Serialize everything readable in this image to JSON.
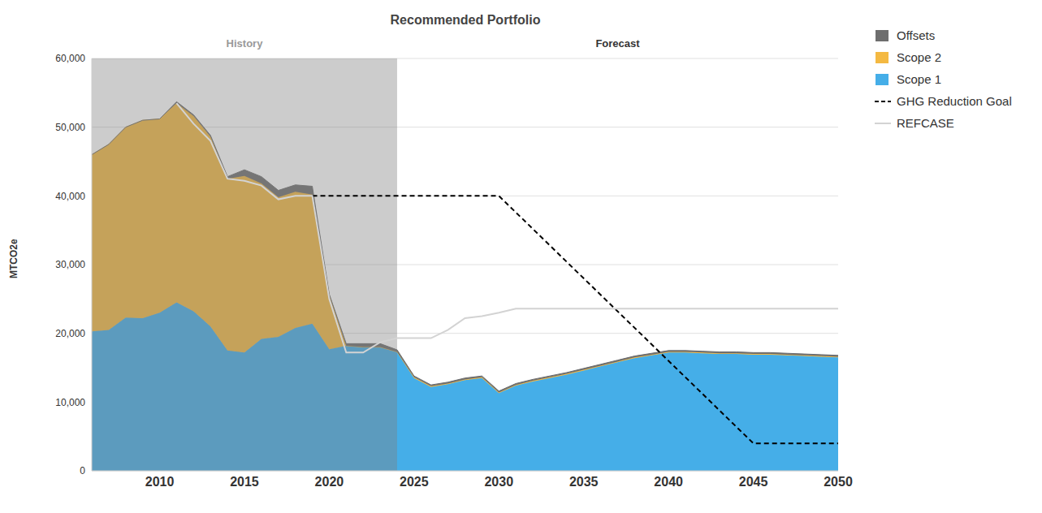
{
  "chart_data": {
    "type": "area",
    "title": "Recommended Portfolio",
    "y_label": "MTCO2e",
    "stacked": true,
    "grid": true,
    "legend": "right",
    "x": [
      2006,
      2007,
      2008,
      2009,
      2010,
      2011,
      2012,
      2013,
      2014,
      2015,
      2016,
      2017,
      2018,
      2019,
      2020,
      2021,
      2022,
      2023,
      2024,
      2025,
      2026,
      2027,
      2028,
      2029,
      2030,
      2031,
      2032,
      2033,
      2034,
      2035,
      2036,
      2037,
      2038,
      2039,
      2040,
      2041,
      2042,
      2043,
      2044,
      2045,
      2046,
      2047,
      2048,
      2049,
      2050
    ],
    "xlim": [
      2006,
      2050
    ],
    "xticks": [
      2010,
      2015,
      2020,
      2025,
      2030,
      2035,
      2040,
      2045,
      2050
    ],
    "ylim": [
      0,
      60000
    ],
    "yticks": [
      {
        "value": 0,
        "label": "0"
      },
      {
        "value": 10000,
        "label": "10,000"
      },
      {
        "value": 20000,
        "label": "20,000"
      },
      {
        "value": 30000,
        "label": "30,000"
      },
      {
        "value": 40000,
        "label": "40,000"
      },
      {
        "value": 50000,
        "label": "50,000"
      },
      {
        "value": 60000,
        "label": "60,000"
      }
    ],
    "regions": [
      {
        "label": "History",
        "x": [
          2006,
          2024
        ]
      },
      {
        "label": "Forecast",
        "x": [
          2024,
          2050
        ]
      }
    ],
    "series": [
      {
        "name": "Offsets",
        "type": "area",
        "color": "#6e6e6e",
        "values": [
          0,
          0,
          0,
          0,
          0,
          200,
          200,
          200,
          300,
          900,
          1000,
          1000,
          1000,
          1200,
          200,
          300,
          500,
          500,
          300,
          200,
          200,
          200,
          200,
          200,
          200,
          200,
          200,
          200,
          200,
          200,
          200,
          200,
          200,
          200,
          200,
          200,
          200,
          200,
          200,
          200,
          200,
          200,
          200,
          200,
          200
        ]
      },
      {
        "name": "Scope 2",
        "type": "area",
        "color": "#f4b942",
        "values": [
          25700,
          27000,
          27700,
          28800,
          28200,
          29000,
          28400,
          27600,
          25000,
          25700,
          22600,
          20300,
          19800,
          18800,
          7800,
          0,
          0,
          0,
          0,
          100,
          100,
          100,
          100,
          100,
          100,
          100,
          100,
          100,
          100,
          100,
          100,
          100,
          100,
          100,
          100,
          100,
          100,
          100,
          100,
          100,
          100,
          100,
          100,
          100,
          100
        ]
      },
      {
        "name": "Scope 1",
        "type": "area",
        "color": "#45aee8",
        "values": [
          20300,
          20500,
          22300,
          22200,
          23000,
          24500,
          23200,
          21000,
          17500,
          17200,
          19200,
          19500,
          20800,
          21400,
          17700,
          18200,
          18000,
          18000,
          17300,
          13500,
          12200,
          12600,
          13200,
          13500,
          11300,
          12400,
          13000,
          13500,
          14000,
          14600,
          15200,
          15800,
          16400,
          16800,
          17200,
          17200,
          17100,
          17000,
          17000,
          16900,
          16900,
          16800,
          16700,
          16600,
          16500
        ]
      },
      {
        "name": "GHG Reduction Goal",
        "type": "line",
        "line_style": "dashed",
        "color": "#000000",
        "values": [
          null,
          null,
          null,
          null,
          null,
          null,
          null,
          null,
          null,
          null,
          null,
          null,
          null,
          40000,
          null,
          null,
          null,
          null,
          null,
          null,
          null,
          null,
          null,
          null,
          40000,
          null,
          null,
          null,
          null,
          null,
          null,
          null,
          null,
          null,
          null,
          null,
          null,
          null,
          null,
          4000,
          null,
          null,
          null,
          null,
          4000
        ]
      },
      {
        "name": "REFCASE",
        "type": "line",
        "line_style": "solid",
        "color": "#d3d3d3",
        "values": [
          null,
          null,
          null,
          null,
          null,
          53500,
          50500,
          48000,
          42500,
          42200,
          41500,
          39500,
          40000,
          40000,
          25000,
          17200,
          17200,
          18700,
          19300,
          19300,
          19300,
          20500,
          22200,
          22500,
          23000,
          23600,
          23600,
          23600,
          23600,
          23600,
          23600,
          23600,
          23600,
          23600,
          23600,
          23600,
          23600,
          23600,
          23600,
          23600,
          23600,
          23600,
          23600,
          23600,
          23600
        ]
      }
    ]
  }
}
